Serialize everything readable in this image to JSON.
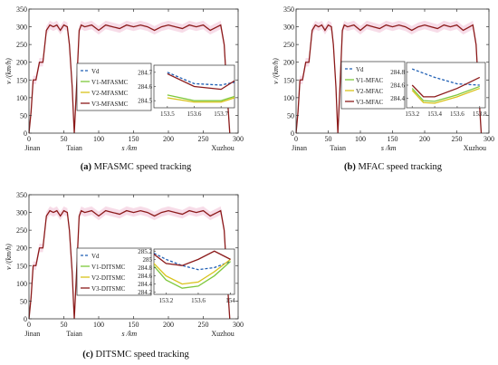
{
  "colors": {
    "vd": "#1f5fb4",
    "v1": "#7ec83c",
    "v2": "#d8c21a",
    "v3": "#8b1a1a",
    "shade": "#f6d8e6",
    "axis": "#333333"
  },
  "chart_data": [
    {
      "type": "line",
      "caption_tag": "(a)",
      "caption_text": "MFASMC speed tracking",
      "ylabel": "v /(km/h)",
      "xlabel": "s /km",
      "xlim": [
        0,
        300
      ],
      "ylim": [
        0,
        350
      ],
      "xticks": [
        0,
        50,
        100,
        150,
        200,
        250,
        300
      ],
      "yticks": [
        0,
        50,
        100,
        150,
        200,
        250,
        300,
        350
      ],
      "station_labels": [
        {
          "name": "Jinan",
          "x": 5
        },
        {
          "name": "Taian",
          "x": 65
        },
        {
          "name": "Xuzhou",
          "x": 278
        }
      ],
      "main_trace": {
        "x": [
          0,
          3,
          6,
          10,
          15,
          20,
          25,
          30,
          35,
          40,
          45,
          50,
          55,
          58,
          62,
          64,
          65,
          66,
          68,
          72,
          75,
          80,
          90,
          100,
          110,
          120,
          130,
          140,
          150,
          160,
          170,
          180,
          190,
          200,
          210,
          220,
          230,
          240,
          250,
          260,
          270,
          275,
          280,
          283,
          286,
          288
        ],
        "y": [
          0,
          60,
          150,
          150,
          200,
          200,
          290,
          305,
          300,
          305,
          290,
          305,
          300,
          250,
          130,
          40,
          0,
          40,
          120,
          290,
          305,
          300,
          305,
          290,
          305,
          300,
          295,
          305,
          300,
          305,
          300,
          290,
          300,
          305,
          300,
          295,
          305,
          300,
          305,
          290,
          300,
          305,
          250,
          150,
          60,
          0
        ]
      },
      "series": [
        {
          "name": "Vd",
          "x": [
            153.5,
            153.6,
            153.7,
            153.75
          ],
          "y": [
            284.7,
            284.62,
            284.61,
            284.63
          ]
        },
        {
          "name": "V1-MFASMC",
          "x": [
            153.5,
            153.6,
            153.7,
            153.75
          ],
          "y": [
            284.54,
            284.5,
            284.5,
            284.53
          ]
        },
        {
          "name": "V2-MFASMC",
          "x": [
            153.5,
            153.6,
            153.7,
            153.75
          ],
          "y": [
            284.52,
            284.49,
            284.49,
            284.52
          ]
        },
        {
          "name": "V3-MFASMC",
          "x": [
            153.5,
            153.6,
            153.7,
            153.75
          ],
          "y": [
            284.69,
            284.6,
            284.58,
            284.64
          ]
        }
      ],
      "inset": {
        "xlim": [
          153.45,
          153.75
        ],
        "ylim": [
          284.45,
          284.75
        ],
        "xticks": [
          153.5,
          153.6,
          153.7
        ],
        "yticks": [
          284.5,
          284.6,
          284.7
        ],
        "xtick_labels": [
          "153.5",
          "153.6",
          "153.7"
        ],
        "ytick_labels": [
          "284.5",
          "284.6",
          "284.7"
        ]
      }
    },
    {
      "type": "line",
      "caption_tag": "(b)",
      "caption_text": "MFAC speed tracking",
      "ylabel": "v /(km/h)",
      "xlabel": "s /km",
      "xlim": [
        0,
        300
      ],
      "ylim": [
        0,
        350
      ],
      "xticks": [
        0,
        50,
        100,
        150,
        200,
        250,
        300
      ],
      "yticks": [
        0,
        50,
        100,
        150,
        200,
        250,
        300,
        350
      ],
      "station_labels": [
        {
          "name": "Jinan",
          "x": 5
        },
        {
          "name": "Taian",
          "x": 65
        },
        {
          "name": "Xuzhou",
          "x": 278
        }
      ],
      "main_trace": {
        "x": [
          0,
          3,
          6,
          10,
          15,
          20,
          25,
          30,
          35,
          40,
          45,
          50,
          55,
          58,
          62,
          64,
          65,
          66,
          68,
          72,
          75,
          80,
          90,
          100,
          110,
          120,
          130,
          140,
          150,
          160,
          170,
          180,
          190,
          200,
          210,
          220,
          230,
          240,
          250,
          260,
          270,
          275,
          280,
          283,
          286,
          288
        ],
        "y": [
          0,
          60,
          150,
          150,
          200,
          200,
          290,
          305,
          300,
          305,
          290,
          305,
          300,
          250,
          130,
          40,
          0,
          40,
          120,
          290,
          305,
          300,
          305,
          290,
          305,
          300,
          295,
          305,
          300,
          305,
          300,
          290,
          300,
          305,
          300,
          295,
          305,
          300,
          305,
          290,
          300,
          305,
          250,
          150,
          60,
          0
        ]
      },
      "series": [
        {
          "name": "Vd",
          "x": [
            153.2,
            153.4,
            153.6,
            153.8
          ],
          "y": [
            284.85,
            284.72,
            284.62,
            284.6
          ]
        },
        {
          "name": "V1-MFAC",
          "x": [
            153.2,
            153.3,
            153.4,
            153.6,
            153.8
          ],
          "y": [
            284.55,
            284.36,
            284.35,
            284.45,
            284.58
          ]
        },
        {
          "name": "V2-MFAC",
          "x": [
            153.2,
            153.3,
            153.4,
            153.6,
            153.8
          ],
          "y": [
            284.52,
            284.33,
            284.32,
            284.42,
            284.55
          ]
        },
        {
          "name": "V3-MFAC",
          "x": [
            153.2,
            153.3,
            153.4,
            153.6,
            153.8
          ],
          "y": [
            284.6,
            284.42,
            284.42,
            284.55,
            284.72
          ]
        }
      ],
      "inset": {
        "xlim": [
          153.15,
          153.85
        ],
        "ylim": [
          284.25,
          284.95
        ],
        "xticks": [
          153.2,
          153.4,
          153.6,
          153.8
        ],
        "yticks": [
          284.4,
          284.6,
          284.8
        ],
        "xtick_labels": [
          "153.2",
          "153.4",
          "153.6",
          "153.8"
        ],
        "ytick_labels": [
          "284.4",
          "284.6",
          "284.8"
        ]
      }
    },
    {
      "type": "line",
      "caption_tag": "(c)",
      "caption_text": "DITSMC speed tracking",
      "ylabel": "v /(km/h)",
      "xlabel": "s /km",
      "xlim": [
        0,
        300
      ],
      "ylim": [
        0,
        350
      ],
      "xticks": [
        0,
        50,
        100,
        150,
        200,
        250,
        300
      ],
      "yticks": [
        0,
        50,
        100,
        150,
        200,
        250,
        300,
        350
      ],
      "station_labels": [
        {
          "name": "Jinan",
          "x": 5
        },
        {
          "name": "Taian",
          "x": 65
        },
        {
          "name": "Xuzhou",
          "x": 278
        }
      ],
      "main_trace": {
        "x": [
          0,
          3,
          6,
          10,
          15,
          20,
          25,
          30,
          35,
          40,
          45,
          50,
          55,
          58,
          62,
          64,
          65,
          66,
          68,
          72,
          75,
          80,
          90,
          100,
          110,
          120,
          130,
          140,
          150,
          160,
          170,
          180,
          190,
          200,
          210,
          220,
          230,
          240,
          250,
          260,
          270,
          275,
          280,
          283,
          286,
          288
        ],
        "y": [
          0,
          60,
          150,
          150,
          200,
          200,
          290,
          305,
          300,
          305,
          290,
          305,
          300,
          250,
          130,
          40,
          0,
          40,
          120,
          290,
          305,
          300,
          305,
          290,
          305,
          300,
          295,
          305,
          300,
          305,
          300,
          290,
          300,
          305,
          300,
          295,
          305,
          300,
          305,
          290,
          300,
          305,
          250,
          150,
          60,
          0
        ]
      },
      "series": [
        {
          "name": "Vd",
          "x": [
            153.0,
            153.2,
            153.4,
            153.6,
            153.8,
            154.0
          ],
          "y": [
            285.2,
            285.0,
            284.85,
            284.75,
            284.8,
            284.95
          ]
        },
        {
          "name": "V1-DITSMC",
          "x": [
            153.0,
            153.2,
            153.4,
            153.6,
            153.8,
            154.0
          ],
          "y": [
            284.95,
            284.5,
            284.3,
            284.35,
            284.6,
            284.95
          ]
        },
        {
          "name": "V2-DITSMC",
          "x": [
            153.0,
            153.2,
            153.4,
            153.6,
            153.8,
            154.0
          ],
          "y": [
            285.0,
            284.6,
            284.4,
            284.45,
            284.7,
            285.0
          ]
        },
        {
          "name": "V3-DITSMC",
          "x": [
            153.0,
            153.2,
            153.4,
            153.6,
            153.8,
            154.0
          ],
          "y": [
            285.2,
            284.9,
            284.85,
            285.0,
            285.2,
            285.0
          ]
        }
      ],
      "inset": {
        "xlim": [
          153.05,
          154.05
        ],
        "ylim": [
          284.15,
          285.25
        ],
        "xticks": [
          153.2,
          153.6,
          154
        ],
        "yticks": [
          284.2,
          284.4,
          284.6,
          284.8,
          285,
          285.2
        ],
        "xtick_labels": [
          "153.2",
          "153.6",
          "154"
        ],
        "ytick_labels": [
          "284.2",
          "284.4",
          "284.6",
          "284.8",
          "285",
          "285.2"
        ]
      }
    }
  ]
}
